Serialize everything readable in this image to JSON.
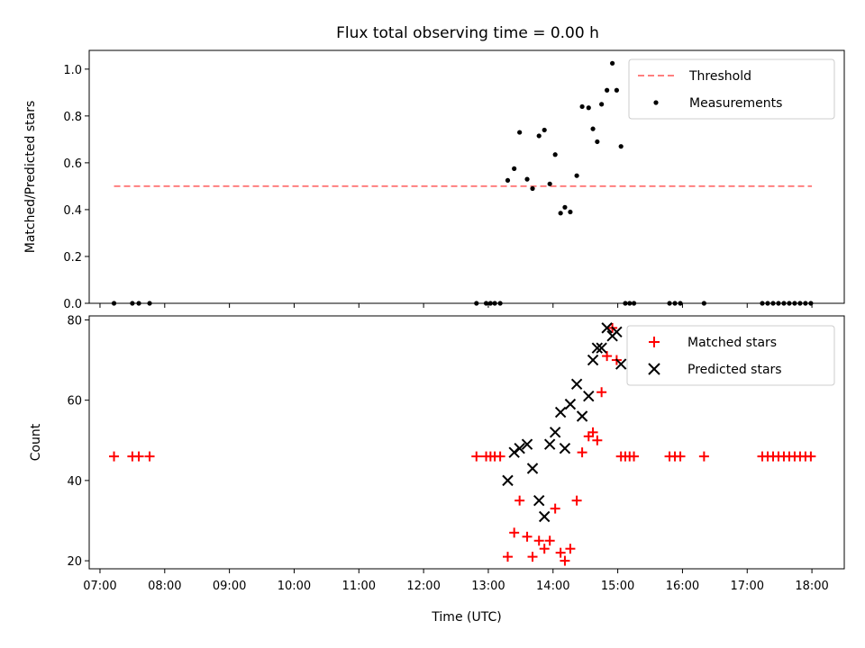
{
  "chart_data": [
    {
      "type": "scatter",
      "title": "Flux total observing time = 0.00 h",
      "ylabel": "Matched/Predicted stars",
      "xlim": [
        "06:50",
        "18:30"
      ],
      "ylim": [
        0,
        1.08
      ],
      "y_ticks": [
        0.0,
        0.2,
        0.4,
        0.6,
        0.8,
        1.0
      ],
      "y_tick_labels": [
        "0.0",
        "0.2",
        "0.4",
        "0.6",
        "0.8",
        "1.0"
      ],
      "legend_position": "top-right",
      "series": [
        {
          "name": "Threshold",
          "kind": "line",
          "style": "dashed",
          "color": "#ff7f7f",
          "x": [
            "07:13",
            "18:00"
          ],
          "y": [
            0.5,
            0.5
          ]
        },
        {
          "name": "Measurements",
          "kind": "scatter",
          "marker": "dot",
          "color": "#000000",
          "points": [
            [
              "07:13",
              0.0
            ],
            [
              "07:30",
              0.0
            ],
            [
              "07:36",
              0.0
            ],
            [
              "07:46",
              0.0
            ],
            [
              "12:49",
              0.0
            ],
            [
              "12:58",
              0.0
            ],
            [
              "13:02",
              0.0
            ],
            [
              "13:06",
              0.0
            ],
            [
              "13:11",
              0.0
            ],
            [
              "13:18",
              0.525
            ],
            [
              "13:24",
              0.575
            ],
            [
              "13:29",
              0.73
            ],
            [
              "13:36",
              0.53
            ],
            [
              "13:41",
              0.49
            ],
            [
              "13:47",
              0.715
            ],
            [
              "13:52",
              0.74
            ],
            [
              "13:57",
              0.51
            ],
            [
              "14:02",
              0.635
            ],
            [
              "14:07",
              0.385
            ],
            [
              "14:11",
              0.41
            ],
            [
              "14:16",
              0.39
            ],
            [
              "14:22",
              0.545
            ],
            [
              "14:27",
              0.84
            ],
            [
              "14:33",
              0.835
            ],
            [
              "14:37",
              0.745
            ],
            [
              "14:41",
              0.69
            ],
            [
              "14:45",
              0.85
            ],
            [
              "14:50",
              0.91
            ],
            [
              "14:55",
              1.025
            ],
            [
              "14:59",
              0.91
            ],
            [
              "15:03",
              0.67
            ],
            [
              "15:07",
              0.0
            ],
            [
              "15:11",
              0.0
            ],
            [
              "15:15",
              0.0
            ],
            [
              "15:48",
              0.0
            ],
            [
              "15:53",
              0.0
            ],
            [
              "15:58",
              0.0
            ],
            [
              "16:20",
              0.0
            ],
            [
              "17:14",
              0.0
            ],
            [
              "17:19",
              0.0
            ],
            [
              "17:24",
              0.0
            ],
            [
              "17:29",
              0.0
            ],
            [
              "17:34",
              0.0
            ],
            [
              "17:39",
              0.0
            ],
            [
              "17:44",
              0.0
            ],
            [
              "17:49",
              0.0
            ],
            [
              "17:54",
              0.0
            ],
            [
              "17:59",
              0.0
            ]
          ]
        }
      ]
    },
    {
      "type": "scatter",
      "xlabel": "Time (UTC)",
      "ylabel": "Count",
      "xlim": [
        "06:50",
        "18:30"
      ],
      "ylim": [
        18,
        81
      ],
      "x_ticks": [
        "07:00",
        "08:00",
        "09:00",
        "10:00",
        "11:00",
        "12:00",
        "13:00",
        "14:00",
        "15:00",
        "16:00",
        "17:00",
        "18:00"
      ],
      "x_tick_labels": [
        "07:00",
        "08:00",
        "09:00",
        "10:00",
        "11:00",
        "12:00",
        "13:00",
        "14:00",
        "15:00",
        "16:00",
        "17:00",
        "18:00"
      ],
      "y_ticks": [
        20,
        40,
        60,
        80
      ],
      "y_tick_labels": [
        "20",
        "40",
        "60",
        "80"
      ],
      "legend_position": "top-right",
      "series": [
        {
          "name": "Matched stars",
          "kind": "scatter",
          "marker": "plus",
          "color": "#ff0000",
          "points": [
            [
              "07:13",
              46
            ],
            [
              "07:30",
              46
            ],
            [
              "07:36",
              46
            ],
            [
              "07:46",
              46
            ],
            [
              "12:49",
              46
            ],
            [
              "12:58",
              46
            ],
            [
              "13:02",
              46
            ],
            [
              "13:06",
              46
            ],
            [
              "13:11",
              46
            ],
            [
              "13:18",
              21
            ],
            [
              "13:24",
              27
            ],
            [
              "13:29",
              35
            ],
            [
              "13:36",
              26
            ],
            [
              "13:41",
              21
            ],
            [
              "13:47",
              25
            ],
            [
              "13:52",
              23
            ],
            [
              "13:57",
              25
            ],
            [
              "14:02",
              33
            ],
            [
              "14:07",
              22
            ],
            [
              "14:11",
              20
            ],
            [
              "14:16",
              23
            ],
            [
              "14:22",
              35
            ],
            [
              "14:27",
              47
            ],
            [
              "14:33",
              51
            ],
            [
              "14:37",
              52
            ],
            [
              "14:41",
              50
            ],
            [
              "14:45",
              62
            ],
            [
              "14:50",
              71
            ],
            [
              "14:55",
              78
            ],
            [
              "14:59",
              70
            ],
            [
              "15:03",
              46
            ],
            [
              "15:07",
              46
            ],
            [
              "15:11",
              46
            ],
            [
              "15:15",
              46
            ],
            [
              "15:48",
              46
            ],
            [
              "15:53",
              46
            ],
            [
              "15:58",
              46
            ],
            [
              "16:20",
              46
            ],
            [
              "17:14",
              46
            ],
            [
              "17:19",
              46
            ],
            [
              "17:24",
              46
            ],
            [
              "17:29",
              46
            ],
            [
              "17:34",
              46
            ],
            [
              "17:39",
              46
            ],
            [
              "17:44",
              46
            ],
            [
              "17:49",
              46
            ],
            [
              "17:54",
              46
            ],
            [
              "17:59",
              46
            ]
          ]
        },
        {
          "name": "Predicted stars",
          "kind": "scatter",
          "marker": "x",
          "color": "#000000",
          "points": [
            [
              "13:18",
              40
            ],
            [
              "13:24",
              47
            ],
            [
              "13:29",
              48
            ],
            [
              "13:36",
              49
            ],
            [
              "13:41",
              43
            ],
            [
              "13:47",
              35
            ],
            [
              "13:52",
              31
            ],
            [
              "13:57",
              49
            ],
            [
              "14:02",
              52
            ],
            [
              "14:07",
              57
            ],
            [
              "14:11",
              48
            ],
            [
              "14:16",
              59
            ],
            [
              "14:22",
              64
            ],
            [
              "14:27",
              56
            ],
            [
              "14:33",
              61
            ],
            [
              "14:37",
              70
            ],
            [
              "14:41",
              73
            ],
            [
              "14:45",
              73
            ],
            [
              "14:50",
              78
            ],
            [
              "14:55",
              76
            ],
            [
              "14:59",
              77
            ],
            [
              "15:03",
              69
            ]
          ]
        }
      ]
    }
  ]
}
